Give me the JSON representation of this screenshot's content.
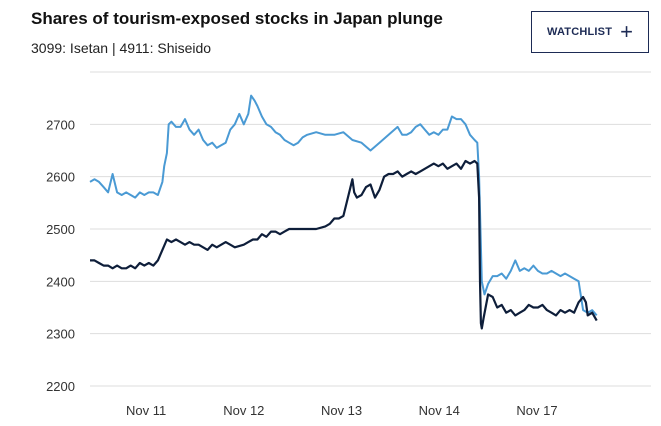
{
  "header": {
    "title": "Shares of tourism-exposed stocks in Japan plunge",
    "subtitle": "3099: Isetan | 4911: Shiseido",
    "watchlist_label": "WATCHLIST",
    "watchlist_icon": "plus-icon"
  },
  "colors": {
    "shiseido": "#4a9ad4",
    "isetan": "#0e1e3a",
    "grid": "#dddddd"
  },
  "chart_data": {
    "type": "line",
    "title": "Shares of tourism-exposed stocks in Japan plunge",
    "subtitle": "3099: Isetan | 4911: Shiseido",
    "xlabel": "",
    "ylabel": "",
    "ylim": [
      2200,
      2800
    ],
    "yticks": [
      2200,
      2300,
      2400,
      2500,
      2600,
      2700
    ],
    "xlim": [
      0,
      6.2
    ],
    "xticks": [
      {
        "value": 0.62,
        "label": "Nov 11"
      },
      {
        "value": 1.7,
        "label": "Nov 12"
      },
      {
        "value": 2.78,
        "label": "Nov 13"
      },
      {
        "value": 3.86,
        "label": "Nov 14"
      },
      {
        "value": 4.94,
        "label": "Nov 17"
      }
    ],
    "grid": true,
    "legend": "none",
    "series": [
      {
        "name": "",
        "color": "#4a9ad4",
        "points": [
          [
            0.0,
            2590
          ],
          [
            0.05,
            2595
          ],
          [
            0.1,
            2590
          ],
          [
            0.15,
            2580
          ],
          [
            0.2,
            2570
          ],
          [
            0.25,
            2605
          ],
          [
            0.3,
            2570
          ],
          [
            0.35,
            2565
          ],
          [
            0.4,
            2570
          ],
          [
            0.45,
            2565
          ],
          [
            0.5,
            2560
          ],
          [
            0.55,
            2570
          ],
          [
            0.6,
            2565
          ],
          [
            0.65,
            2570
          ],
          [
            0.7,
            2570
          ],
          [
            0.75,
            2565
          ],
          [
            0.8,
            2590
          ],
          [
            0.82,
            2620
          ],
          [
            0.85,
            2645
          ],
          [
            0.87,
            2700
          ],
          [
            0.9,
            2705
          ],
          [
            0.95,
            2695
          ],
          [
            1.0,
            2695
          ],
          [
            1.05,
            2710
          ],
          [
            1.1,
            2690
          ],
          [
            1.15,
            2680
          ],
          [
            1.2,
            2690
          ],
          [
            1.25,
            2670
          ],
          [
            1.3,
            2660
          ],
          [
            1.35,
            2665
          ],
          [
            1.4,
            2655
          ],
          [
            1.45,
            2660
          ],
          [
            1.5,
            2665
          ],
          [
            1.55,
            2690
          ],
          [
            1.6,
            2700
          ],
          [
            1.65,
            2720
          ],
          [
            1.7,
            2700
          ],
          [
            1.75,
            2720
          ],
          [
            1.78,
            2755
          ],
          [
            1.82,
            2745
          ],
          [
            1.85,
            2735
          ],
          [
            1.9,
            2715
          ],
          [
            1.95,
            2700
          ],
          [
            2.0,
            2695
          ],
          [
            2.05,
            2685
          ],
          [
            2.1,
            2680
          ],
          [
            2.15,
            2670
          ],
          [
            2.2,
            2665
          ],
          [
            2.25,
            2660
          ],
          [
            2.3,
            2665
          ],
          [
            2.35,
            2675
          ],
          [
            2.4,
            2680
          ],
          [
            2.5,
            2685
          ],
          [
            2.6,
            2680
          ],
          [
            2.7,
            2680
          ],
          [
            2.8,
            2685
          ],
          [
            2.9,
            2670
          ],
          [
            3.0,
            2665
          ],
          [
            3.1,
            2650
          ],
          [
            3.2,
            2665
          ],
          [
            3.3,
            2680
          ],
          [
            3.4,
            2695
          ],
          [
            3.45,
            2680
          ],
          [
            3.5,
            2680
          ],
          [
            3.55,
            2685
          ],
          [
            3.6,
            2695
          ],
          [
            3.65,
            2700
          ],
          [
            3.7,
            2690
          ],
          [
            3.75,
            2680
          ],
          [
            3.8,
            2685
          ],
          [
            3.85,
            2680
          ],
          [
            3.9,
            2690
          ],
          [
            3.95,
            2690
          ],
          [
            4.0,
            2715
          ],
          [
            4.05,
            2710
          ],
          [
            4.1,
            2710
          ],
          [
            4.15,
            2700
          ],
          [
            4.2,
            2680
          ],
          [
            4.25,
            2670
          ],
          [
            4.28,
            2665
          ],
          [
            4.3,
            2600
          ],
          [
            4.33,
            2400
          ],
          [
            4.36,
            2375
          ],
          [
            4.4,
            2395
          ],
          [
            4.45,
            2410
          ],
          [
            4.5,
            2410
          ],
          [
            4.55,
            2415
          ],
          [
            4.6,
            2405
          ],
          [
            4.65,
            2420
          ],
          [
            4.7,
            2440
          ],
          [
            4.75,
            2420
          ],
          [
            4.8,
            2425
          ],
          [
            4.85,
            2420
          ],
          [
            4.9,
            2430
          ],
          [
            4.95,
            2420
          ],
          [
            5.0,
            2415
          ],
          [
            5.05,
            2415
          ],
          [
            5.1,
            2420
          ],
          [
            5.15,
            2415
          ],
          [
            5.2,
            2410
          ],
          [
            5.25,
            2415
          ],
          [
            5.3,
            2410
          ],
          [
            5.35,
            2405
          ],
          [
            5.4,
            2400
          ],
          [
            5.45,
            2345
          ],
          [
            5.5,
            2340
          ],
          [
            5.55,
            2345
          ],
          [
            5.6,
            2335
          ]
        ]
      },
      {
        "name": "",
        "color": "#0e1e3a",
        "points": [
          [
            0.0,
            2440
          ],
          [
            0.05,
            2440
          ],
          [
            0.1,
            2435
          ],
          [
            0.15,
            2430
          ],
          [
            0.2,
            2430
          ],
          [
            0.25,
            2425
          ],
          [
            0.3,
            2430
          ],
          [
            0.35,
            2425
          ],
          [
            0.4,
            2425
          ],
          [
            0.45,
            2430
          ],
          [
            0.5,
            2425
          ],
          [
            0.55,
            2435
          ],
          [
            0.6,
            2430
          ],
          [
            0.65,
            2435
          ],
          [
            0.7,
            2430
          ],
          [
            0.75,
            2440
          ],
          [
            0.8,
            2460
          ],
          [
            0.85,
            2480
          ],
          [
            0.9,
            2475
          ],
          [
            0.95,
            2480
          ],
          [
            1.0,
            2475
          ],
          [
            1.05,
            2470
          ],
          [
            1.1,
            2475
          ],
          [
            1.15,
            2470
          ],
          [
            1.2,
            2470
          ],
          [
            1.25,
            2465
          ],
          [
            1.3,
            2460
          ],
          [
            1.35,
            2470
          ],
          [
            1.4,
            2465
          ],
          [
            1.45,
            2470
          ],
          [
            1.5,
            2475
          ],
          [
            1.55,
            2470
          ],
          [
            1.6,
            2465
          ],
          [
            1.7,
            2470
          ],
          [
            1.75,
            2475
          ],
          [
            1.8,
            2480
          ],
          [
            1.85,
            2480
          ],
          [
            1.9,
            2490
          ],
          [
            1.95,
            2485
          ],
          [
            2.0,
            2495
          ],
          [
            2.05,
            2495
          ],
          [
            2.1,
            2490
          ],
          [
            2.15,
            2495
          ],
          [
            2.2,
            2500
          ],
          [
            2.3,
            2500
          ],
          [
            2.4,
            2500
          ],
          [
            2.5,
            2500
          ],
          [
            2.6,
            2505
          ],
          [
            2.65,
            2510
          ],
          [
            2.7,
            2520
          ],
          [
            2.75,
            2520
          ],
          [
            2.8,
            2525
          ],
          [
            2.85,
            2560
          ],
          [
            2.9,
            2595
          ],
          [
            2.92,
            2570
          ],
          [
            2.95,
            2560
          ],
          [
            3.0,
            2565
          ],
          [
            3.05,
            2580
          ],
          [
            3.1,
            2585
          ],
          [
            3.15,
            2560
          ],
          [
            3.2,
            2575
          ],
          [
            3.25,
            2600
          ],
          [
            3.3,
            2605
          ],
          [
            3.35,
            2605
          ],
          [
            3.4,
            2610
          ],
          [
            3.45,
            2600
          ],
          [
            3.5,
            2605
          ],
          [
            3.55,
            2610
          ],
          [
            3.6,
            2605
          ],
          [
            3.65,
            2610
          ],
          [
            3.7,
            2615
          ],
          [
            3.75,
            2620
          ],
          [
            3.8,
            2625
          ],
          [
            3.85,
            2620
          ],
          [
            3.9,
            2625
          ],
          [
            3.95,
            2615
          ],
          [
            4.0,
            2620
          ],
          [
            4.05,
            2625
          ],
          [
            4.1,
            2615
          ],
          [
            4.15,
            2630
          ],
          [
            4.2,
            2625
          ],
          [
            4.25,
            2630
          ],
          [
            4.28,
            2625
          ],
          [
            4.3,
            2560
          ],
          [
            4.31,
            2400
          ],
          [
            4.32,
            2320
          ],
          [
            4.33,
            2310
          ],
          [
            4.35,
            2330
          ],
          [
            4.4,
            2375
          ],
          [
            4.45,
            2370
          ],
          [
            4.5,
            2350
          ],
          [
            4.55,
            2355
          ],
          [
            4.6,
            2340
          ],
          [
            4.65,
            2345
          ],
          [
            4.7,
            2335
          ],
          [
            4.75,
            2340
          ],
          [
            4.8,
            2345
          ],
          [
            4.85,
            2355
          ],
          [
            4.9,
            2350
          ],
          [
            4.95,
            2350
          ],
          [
            5.0,
            2355
          ],
          [
            5.05,
            2345
          ],
          [
            5.1,
            2340
          ],
          [
            5.15,
            2335
          ],
          [
            5.2,
            2345
          ],
          [
            5.25,
            2340
          ],
          [
            5.3,
            2345
          ],
          [
            5.35,
            2340
          ],
          [
            5.4,
            2360
          ],
          [
            5.45,
            2370
          ],
          [
            5.48,
            2360
          ],
          [
            5.5,
            2335
          ],
          [
            5.55,
            2340
          ],
          [
            5.6,
            2325
          ]
        ]
      }
    ]
  }
}
